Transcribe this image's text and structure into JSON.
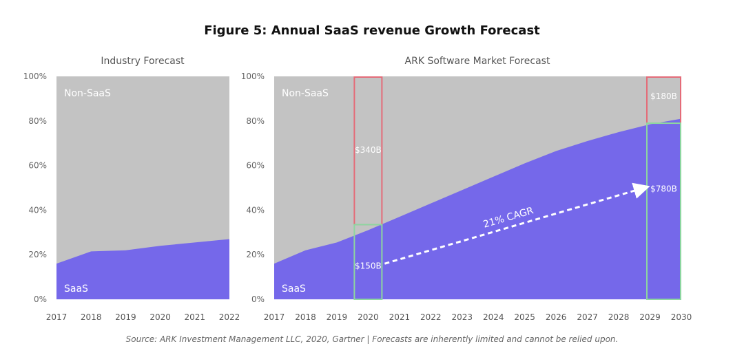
{
  "figure": {
    "title": "Figure 5: Annual SaaS revenue Growth Forecast",
    "source": "Source: ARK Investment Management LLC, 2020, Gartner   |   Forecasts are inherently limited and cannot be relied upon."
  },
  "colors": {
    "saas": "#7568ea",
    "non_saas": "#c3c3c3",
    "red_box": "#e46b78",
    "green_box": "#8dd6a0",
    "arrow": "#ffffff"
  },
  "chart_data": [
    {
      "type": "area",
      "title": "Industry Forecast",
      "x": [
        2017,
        2018,
        2019,
        2020,
        2021,
        2022
      ],
      "ylim": [
        0,
        100
      ],
      "yticks": [
        "0%",
        "20%",
        "40%",
        "60%",
        "80%",
        "100%"
      ],
      "xticks": [
        "2017",
        "2018",
        "2019",
        "2020",
        "2021",
        "2022"
      ],
      "stacked": true,
      "series": [
        {
          "name": "SaaS",
          "values": [
            16,
            21.5,
            22,
            24,
            25.5,
            27
          ]
        },
        {
          "name": "Non-SaaS",
          "values": [
            84,
            78.5,
            78,
            76,
            74.5,
            73
          ]
        }
      ],
      "grid": false
    },
    {
      "type": "area",
      "title": "ARK Software Market Forecast",
      "x": [
        2017,
        2018,
        2019,
        2020,
        2021,
        2022,
        2023,
        2024,
        2025,
        2026,
        2027,
        2028,
        2029,
        2030
      ],
      "ylim": [
        0,
        100
      ],
      "yticks": [
        "0%",
        "20%",
        "40%",
        "60%",
        "80%",
        "100%"
      ],
      "xticks": [
        "2017",
        "2018",
        "2019",
        "2020",
        "2021",
        "2022",
        "2023",
        "2024",
        "2025",
        "2026",
        "2027",
        "2028",
        "2029",
        "2030"
      ],
      "stacked": true,
      "series": [
        {
          "name": "SaaS",
          "values": [
            16,
            22,
            25.5,
            31,
            37,
            43,
            49,
            55,
            61,
            66.5,
            71,
            75,
            78.5,
            81
          ]
        },
        {
          "name": "Non-SaaS",
          "values": [
            84,
            78,
            74.5,
            69,
            63,
            57,
            51,
            45,
            39,
            33.5,
            29,
            25,
            21.5,
            19
          ]
        }
      ],
      "grid": false,
      "annotations": {
        "saas_2020": "$150B",
        "non_saas_2020": "$340B",
        "saas_2030": "$780B",
        "non_saas_2030": "$180B",
        "cagr": "21% CAGR",
        "box_2020": {
          "x": 2020,
          "saas_top": 33.5
        },
        "box_2030": {
          "x": 2030,
          "saas_top": 79
        },
        "arrow": {
          "from": [
            2020,
            16
          ],
          "to": [
            2030,
            50
          ]
        }
      }
    }
  ]
}
